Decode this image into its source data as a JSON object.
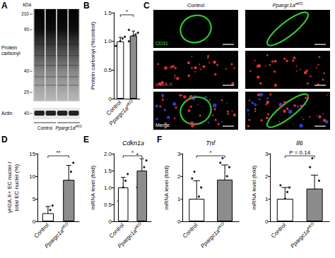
{
  "panel_labels": [
    "A",
    "B",
    "C",
    "D",
    "E",
    "F"
  ],
  "blot": {
    "unit": "kDa",
    "markers": [
      210,
      90,
      40,
      20
    ],
    "target": "Protein carbonyl",
    "loading": "Actin",
    "loading_marker": 40,
    "groups": [
      "Control",
      {
        "text": "Ppargc1a",
        "sup": "eKO"
      }
    ]
  },
  "images": {
    "columns": [
      "Control",
      {
        "text": "Ppargc1a",
        "sup": "eKO"
      }
    ],
    "rows": [
      "CD31",
      "γH2A.X",
      "Merge"
    ]
  },
  "chart_data": [
    {
      "type": "bar",
      "y_label": "Protein carbonyl (%control)",
      "categories": [
        "Control",
        {
          "text": "Ppargc1a",
          "sup": "eKO"
        }
      ],
      "values": [
        1.0,
        1.1
      ],
      "errors": [
        0.07,
        0.08
      ],
      "points": [
        [
          0.92,
          0.95,
          1.0,
          1.05,
          1.08
        ],
        [
          1.0,
          1.05,
          1.1,
          1.12,
          1.15,
          1.2,
          1.03
        ]
      ],
      "colors": [
        "#ffffff",
        "#8c8c8c"
      ],
      "ylim": [
        0,
        1.5
      ],
      "yticks": [
        0,
        0.5,
        {
          "value": 1,
          "label": "1.0"
        },
        1.5
      ],
      "grid": false,
      "annotation": "*"
    },
    {
      "type": "bar",
      "y_label": [
        "γH2A.X+ EC nuclei /",
        "total EC nuclei (%)"
      ],
      "categories": [
        "Control",
        {
          "text": "Ppargc1a",
          "sup": "eKO"
        }
      ],
      "values": [
        1.8,
        9.2
      ],
      "errors": [
        1.5,
        3.2
      ],
      "points": [
        [
          0.2,
          0.5,
          1.5,
          2.5,
          3.5
        ],
        [
          6,
          7.5,
          9,
          11,
          13
        ]
      ],
      "colors": [
        "#ffffff",
        "#8c8c8c"
      ],
      "ylim": [
        0,
        15
      ],
      "yticks": [
        0,
        5,
        10,
        15
      ],
      "grid": false,
      "annotation": "**"
    },
    {
      "type": "bar",
      "title": "Cdkn1a",
      "y_label": "mRNA level (fold)",
      "categories": [
        "Control",
        {
          "text": "Ppargc1a",
          "sup": "eKO"
        }
      ],
      "values": [
        1.0,
        1.5
      ],
      "errors": [
        0.3,
        0.35
      ],
      "points": [
        [
          0.6,
          0.9,
          1.0,
          1.2,
          1.4
        ],
        [
          1.0,
          1.2,
          1.4,
          1.6,
          1.8,
          2.0
        ]
      ],
      "colors": [
        "#ffffff",
        "#8c8c8c"
      ],
      "ylim": [
        0,
        2
      ],
      "yticks": [
        0,
        0.5,
        {
          "value": 1,
          "label": "1.0"
        },
        1.5,
        {
          "value": 2,
          "label": "2.0"
        }
      ],
      "grid": false,
      "annotation": "*"
    },
    {
      "type": "bar",
      "title": "Tnf",
      "y_label": "mRNA level (fold)",
      "categories": [
        "Control",
        {
          "text": "Ppargc1a",
          "sup": "eKO"
        }
      ],
      "values": [
        1.0,
        1.85
      ],
      "errors": [
        0.8,
        0.65
      ],
      "points": [
        [
          0.1,
          0.3,
          0.8,
          1.1,
          1.5,
          1.9,
          2.2
        ],
        [
          0.9,
          1.2,
          1.6,
          2.0,
          2.4,
          2.6,
          2.8
        ]
      ],
      "colors": [
        "#ffffff",
        "#8c8c8c"
      ],
      "ylim": [
        0,
        3
      ],
      "yticks": [
        0,
        1,
        2,
        3
      ],
      "grid": false,
      "annotation": "*"
    },
    {
      "type": "bar",
      "title": "Il6",
      "y_label": "mRNA level (fold)",
      "categories": [
        "Control",
        {
          "text": "Ppargc1a",
          "sup": "eKO"
        }
      ],
      "values": [
        1.0,
        1.45
      ],
      "errors": [
        0.5,
        0.6
      ],
      "points": [
        [
          0.4,
          0.7,
          1.0,
          1.3,
          1.5,
          1.6
        ],
        [
          0.5,
          0.8,
          1.2,
          1.4,
          1.8,
          2.4,
          2.8
        ]
      ],
      "colors": [
        "#ffffff",
        "#8c8c8c"
      ],
      "ylim": [
        0,
        3
      ],
      "yticks": [
        0,
        1,
        2,
        3
      ],
      "grid": false,
      "annotation": "P = 0.14"
    }
  ]
}
